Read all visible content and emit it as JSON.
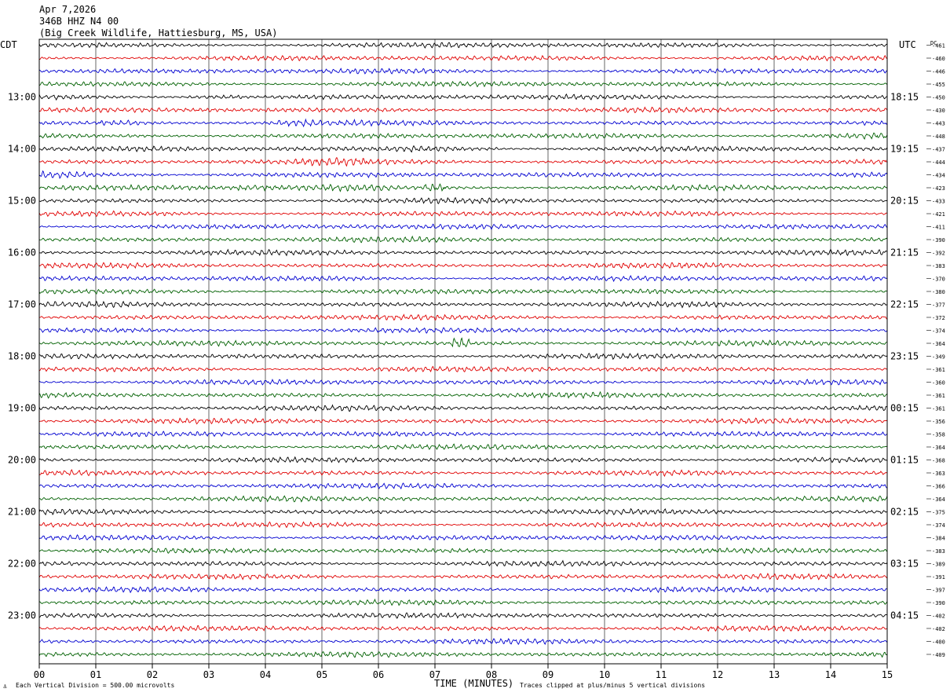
{
  "header": {
    "date": "Apr 7,2026",
    "station": "346B HHZ N4 00",
    "location": "(Big Creek Wildlife, Hattiesburg, MS, USA)"
  },
  "left_tz": "CDT",
  "right_tz": "UTC",
  "dc_label": "DC",
  "footer": {
    "scale": "Each Vertical Division =  500.00 microvolts",
    "xlabel": "TIME (MINUTES)",
    "clip": "Traces clipped at plus/minus 5 vertical divisions"
  },
  "colors": {
    "trace_cycle": [
      "#000000",
      "#e00000",
      "#0000d0",
      "#006000"
    ],
    "grid": "#000000",
    "background": "#ffffff"
  },
  "chart_data": {
    "type": "line",
    "title": "346B HHZ N4 00",
    "xlabel": "TIME (MINUTES)",
    "x_ticks": [
      "00",
      "01",
      "02",
      "03",
      "04",
      "05",
      "06",
      "07",
      "08",
      "09",
      "10",
      "11",
      "12",
      "13",
      "14",
      "15"
    ],
    "xlim": [
      0,
      15
    ],
    "rows_per_hour": 4,
    "minutes_per_row": 15,
    "left_hour_labels": [
      "13:00",
      "14:00",
      "15:00",
      "16:00",
      "17:00",
      "18:00",
      "19:00",
      "20:00",
      "21:00",
      "22:00",
      "23:00"
    ],
    "right_hour_labels": [
      "18:15",
      "19:15",
      "20:15",
      "21:15",
      "22:15",
      "23:15",
      "00:15",
      "01:15",
      "02:15",
      "03:15",
      "04:15"
    ],
    "dc_offsets": [
      "-461",
      "-460",
      "-446",
      "-455",
      "-450",
      "-430",
      "-443",
      "-448",
      "-437",
      "-444",
      "-434",
      "-423",
      "-433",
      "-421",
      "-411",
      "-390",
      "-392",
      "-383",
      "-370",
      "-380",
      "-377",
      "-372",
      "-374",
      "-364",
      "-349",
      "-361",
      "-360",
      "-361",
      "-361",
      "-356",
      "-358",
      "-364",
      "-368",
      "-363",
      "-366",
      "-364",
      "-375",
      "-374",
      "-384",
      "-383",
      "-389",
      "-391",
      "-397",
      "-390",
      "-402",
      "-402",
      "-400",
      "-409"
    ],
    "events": [
      {
        "row": 4,
        "start_min": 2.6,
        "end_min": 3.6,
        "amp": 1.9
      },
      {
        "row": 6,
        "start_min": 1.1,
        "end_min": 1.8,
        "amp": 1.6
      },
      {
        "row": 6,
        "start_min": 4.2,
        "end_min": 5.0,
        "amp": 1.5
      },
      {
        "row": 7,
        "start_min": 1.5,
        "end_min": 2.6,
        "amp": 1.4
      },
      {
        "row": 7,
        "start_min": 12.7,
        "end_min": 15.0,
        "amp": 1.4
      },
      {
        "row": 8,
        "start_min": 6.3,
        "end_min": 8.2,
        "amp": 1.6
      },
      {
        "row": 9,
        "start_min": 4.5,
        "end_min": 5.8,
        "amp": 1.4
      },
      {
        "row": 10,
        "start_min": 0.0,
        "end_min": 2.3,
        "amp": 1.6
      },
      {
        "row": 11,
        "start_min": 3.5,
        "end_min": 6.2,
        "amp": 1.6
      },
      {
        "row": 11,
        "start_min": 6.8,
        "end_min": 7.2,
        "amp": 2.4
      },
      {
        "row": 23,
        "start_min": 7.3,
        "end_min": 7.6,
        "amp": 3.2
      }
    ]
  }
}
